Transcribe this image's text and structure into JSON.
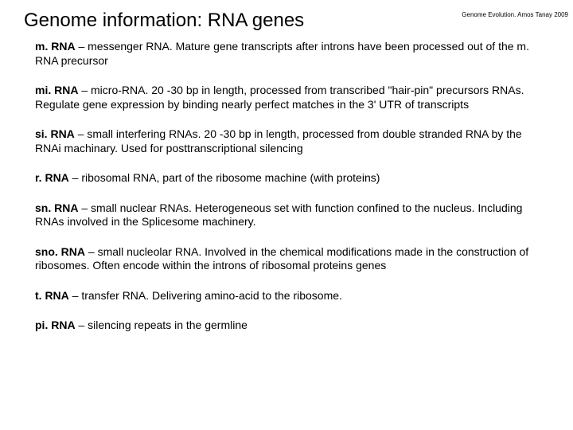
{
  "header": {
    "title": "Genome information: RNA genes",
    "attribution": "Genome Evolution. Amos Tanay 2009"
  },
  "entries": [
    {
      "term": "m. RNA",
      "def": " – messenger RNA. Mature gene transcripts after introns have been processed out of the m. RNA precursor"
    },
    {
      "term": "mi. RNA",
      "def": " – micro-RNA. 20 -30 bp in length, processed from transcribed \"hair-pin\" precursors RNAs. Regulate gene expression by binding nearly perfect matches in the 3' UTR of transcripts"
    },
    {
      "term": "si. RNA",
      "def": " – small interfering RNAs. 20 -30 bp in length, processed from double stranded RNA by the RNAi machinary. Used for posttranscriptional silencing"
    },
    {
      "term": "r. RNA",
      "def": " – ribosomal RNA, part of the ribosome machine (with proteins)"
    },
    {
      "term": "sn. RNA",
      "def": " – small nuclear RNAs. Heterogeneous set with function confined to the nucleus. Including RNAs involved in the Splicesome machinery."
    },
    {
      "term": "sno. RNA",
      "def": " – small nucleolar RNA. Involved in the chemical modifications made in the construction of ribosomes. Often encode within the introns of ribosomal proteins genes"
    },
    {
      "term": "t. RNA",
      "def": " – transfer RNA. Delivering amino-acid to the ribosome."
    },
    {
      "term": "pi. RNA",
      "def": " – silencing repeats in the germline"
    }
  ]
}
